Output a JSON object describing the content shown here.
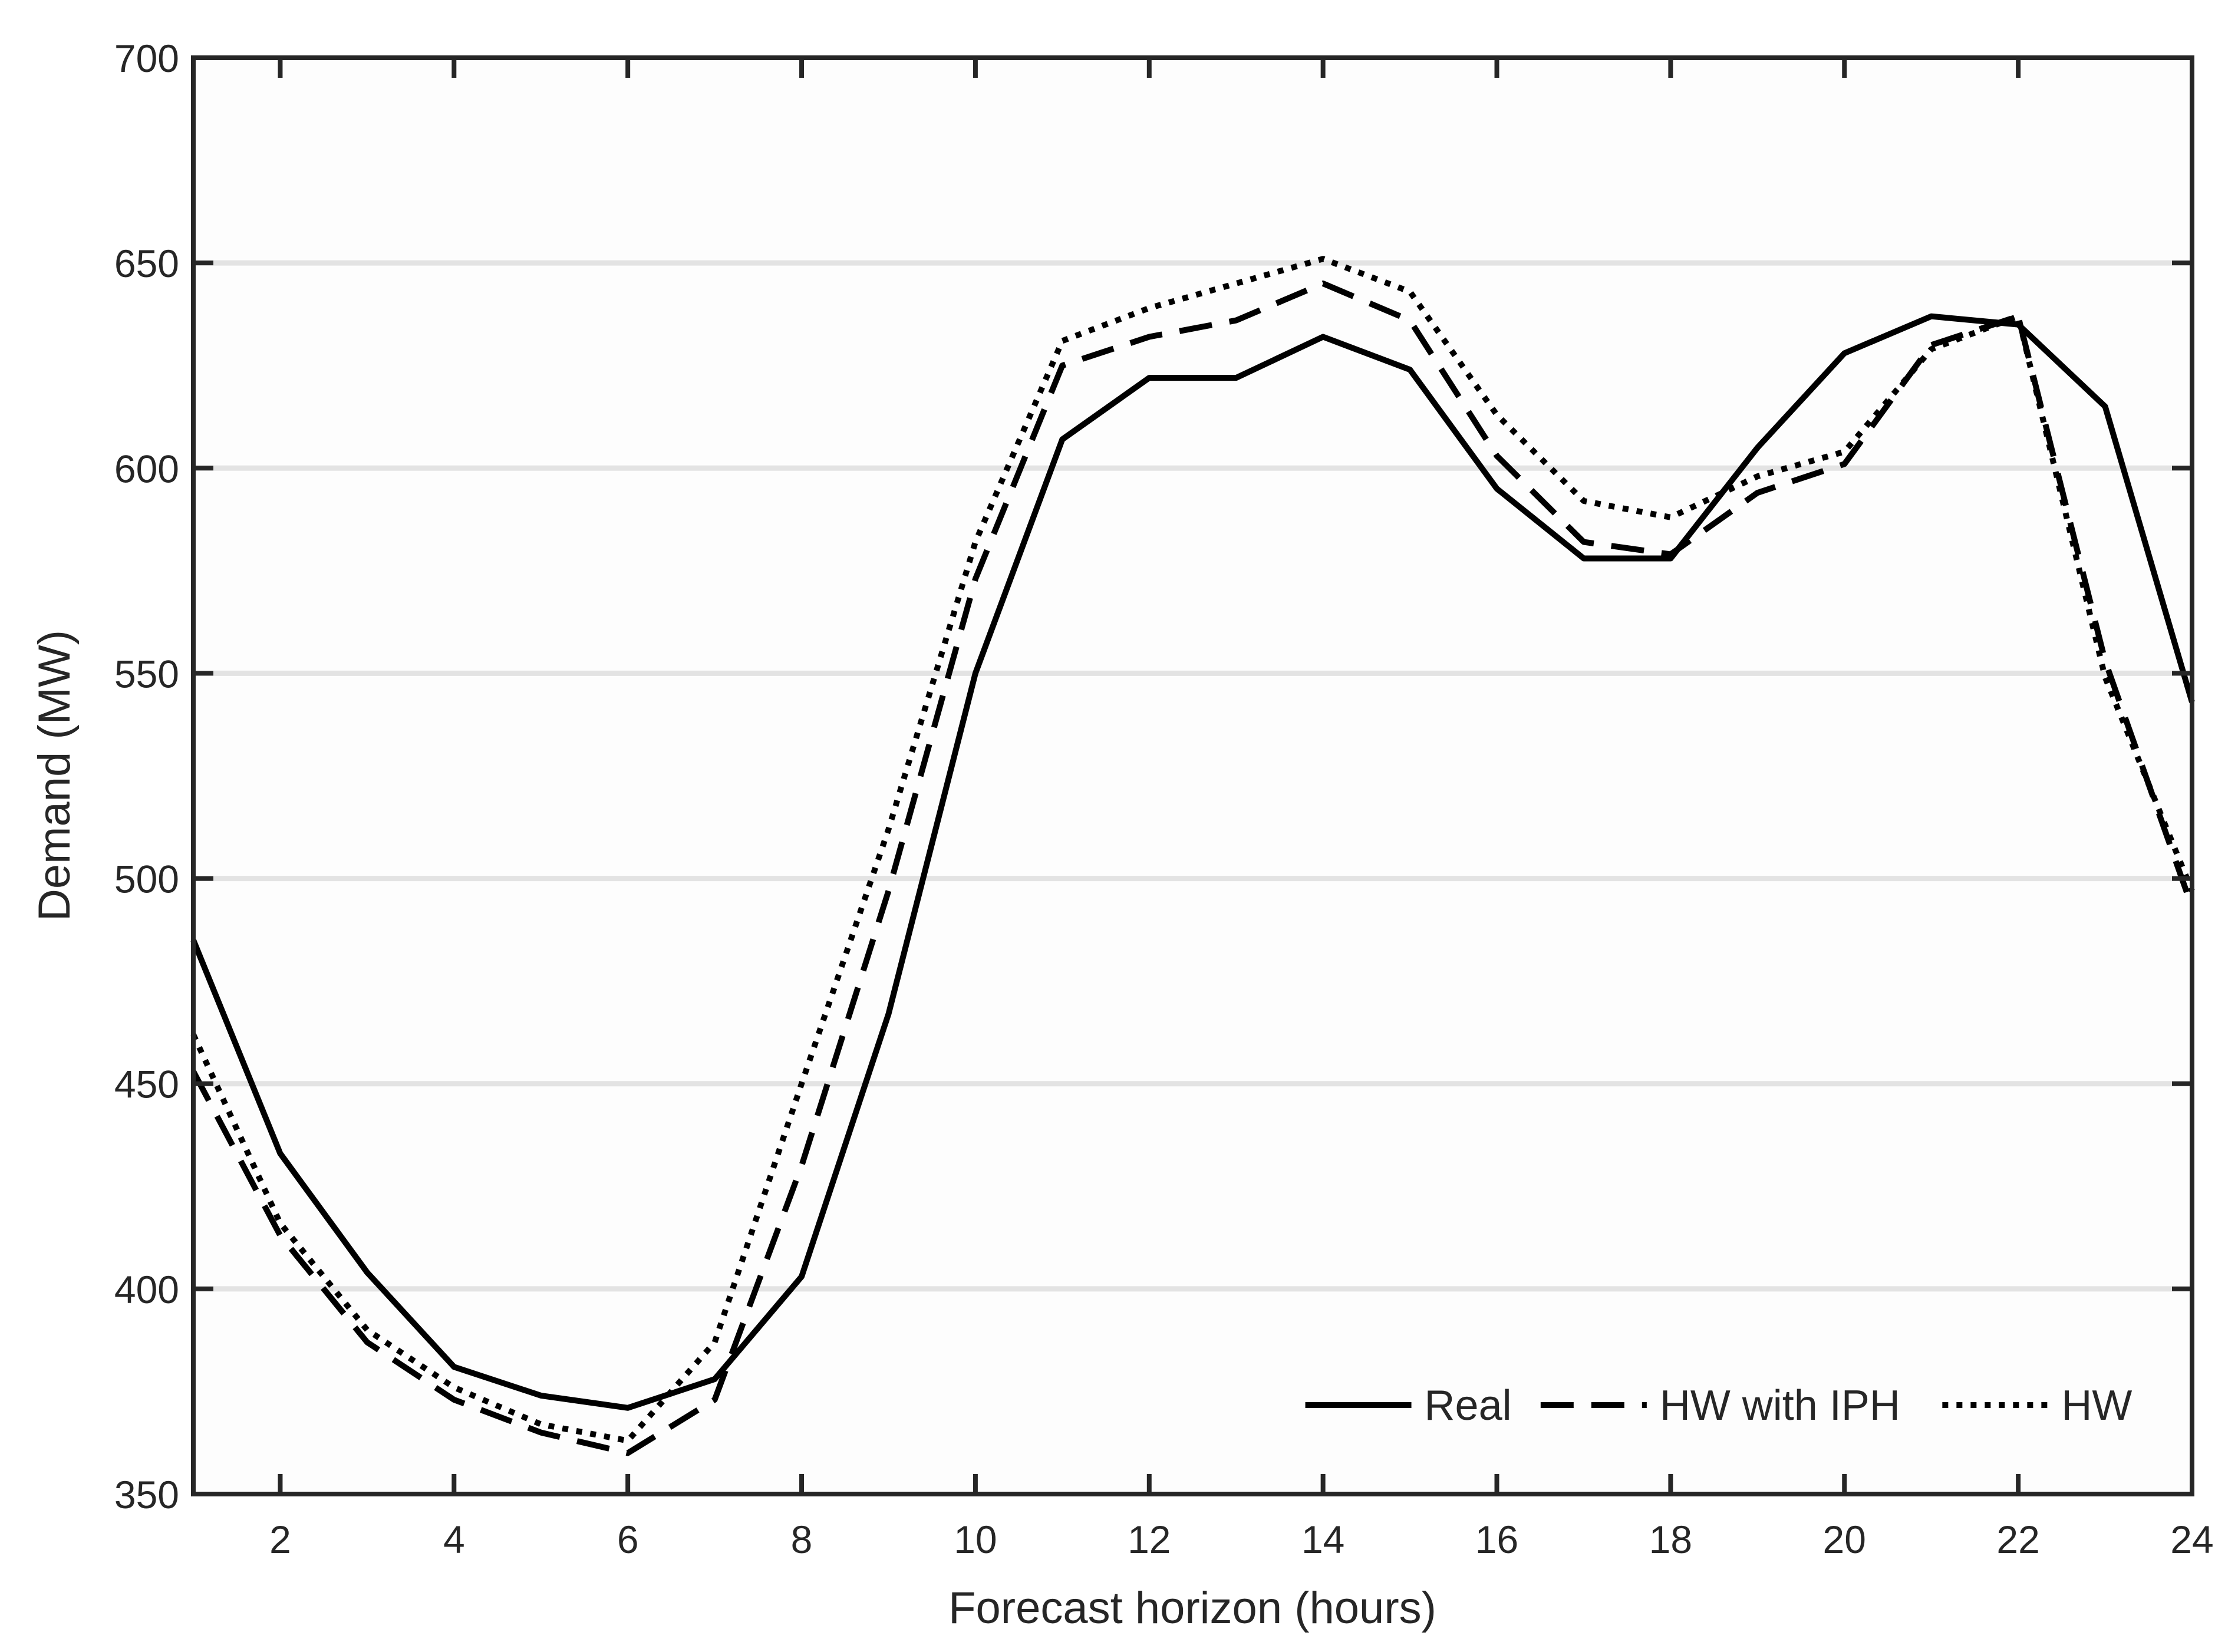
{
  "chart_data": {
    "type": "line",
    "title": "",
    "xlabel": "Forecast horizon (hours)",
    "ylabel": "Demand (MW)",
    "xlim": [
      1,
      24
    ],
    "ylim": [
      350,
      700
    ],
    "xticks": [
      2,
      4,
      6,
      8,
      10,
      12,
      14,
      16,
      18,
      20,
      22,
      24
    ],
    "yticks": [
      350,
      400,
      450,
      500,
      550,
      600,
      650,
      700
    ],
    "grid": "horizontal",
    "legend_position": "bottom-right",
    "x": [
      1,
      2,
      3,
      4,
      5,
      6,
      7,
      8,
      9,
      10,
      11,
      12,
      13,
      14,
      15,
      16,
      17,
      18,
      19,
      20,
      21,
      22,
      23,
      24
    ],
    "series": [
      {
        "name": "Real",
        "style": "solid",
        "color": "#000000",
        "values": [
          485,
          433,
          404,
          381,
          374,
          371,
          378,
          403,
          467,
          550,
          607,
          622,
          622,
          632,
          624,
          595,
          578,
          578,
          605,
          628,
          637,
          635,
          615,
          543
        ]
      },
      {
        "name": "HW with IPH",
        "style": "dashed",
        "color": "#000000",
        "values": [
          453,
          413,
          387,
          373,
          365,
          360,
          373,
          430,
          497,
          573,
          625,
          632,
          636,
          645,
          636,
          603,
          582,
          579,
          594,
          601,
          630,
          637,
          553,
          493
        ]
      },
      {
        "name": "HW",
        "style": "dotted",
        "color": "#000000",
        "values": [
          462,
          416,
          390,
          376,
          367,
          363,
          387,
          450,
          512,
          582,
          631,
          639,
          645,
          651,
          643,
          613,
          592,
          588,
          598,
          604,
          629,
          637,
          549,
          497
        ]
      }
    ]
  }
}
